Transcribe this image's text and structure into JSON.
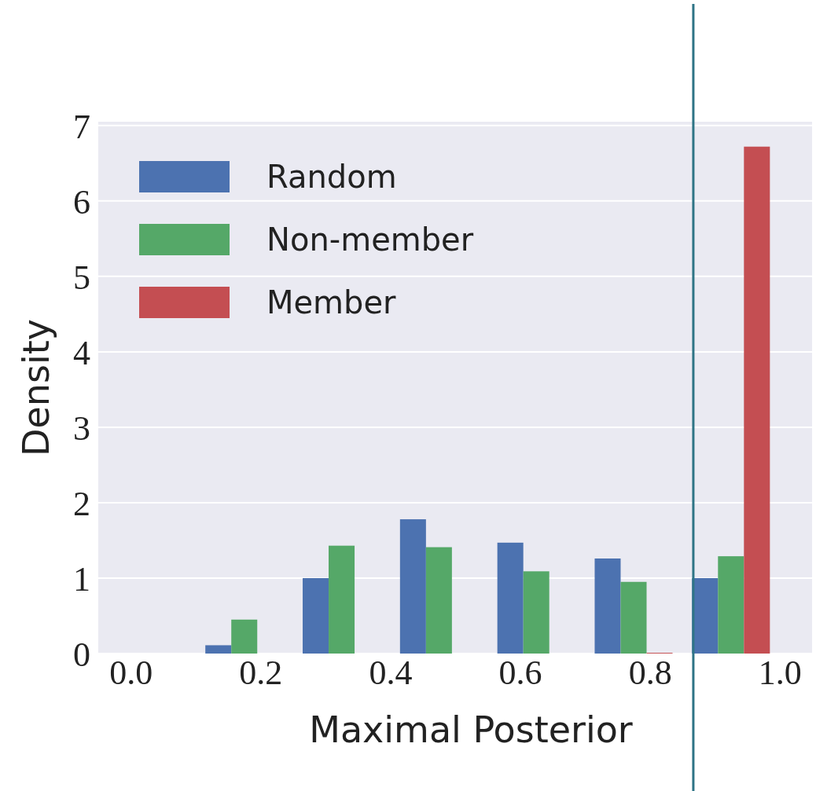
{
  "chart_data": {
    "type": "histogram",
    "xlabel": "Maximal Posterior",
    "ylabel": "Density",
    "bins": [
      0.1,
      0.25,
      0.4,
      0.55,
      0.7,
      0.85,
      1.0
    ],
    "series": [
      {
        "name": "Random",
        "color": "#4c72b0",
        "values": [
          0.11,
          1.0,
          1.78,
          1.47,
          1.26,
          1.0
        ]
      },
      {
        "name": "Non-member",
        "color": "#55a868",
        "values": [
          0.45,
          1.43,
          1.41,
          1.09,
          0.95,
          1.29
        ]
      },
      {
        "name": "Member",
        "color": "#c44e52",
        "values": [
          0,
          0,
          0,
          0,
          0.01,
          6.72
        ]
      }
    ],
    "xlim": [
      -0.05,
      1.05
    ],
    "xticks": [
      {
        "value": 0,
        "label": "0.0"
      },
      0.2,
      0.4,
      0.6,
      0.8,
      {
        "value": 1,
        "label": "1.0"
      }
    ],
    "ylim": [
      0,
      7.05
    ],
    "yticks": [
      0,
      1,
      2,
      3,
      4,
      5,
      6,
      7
    ],
    "ref_lines": [
      {
        "axis": "x",
        "value": 0.867,
        "color": "#2e7486"
      }
    ],
    "grid": "y",
    "legend": "top left"
  }
}
